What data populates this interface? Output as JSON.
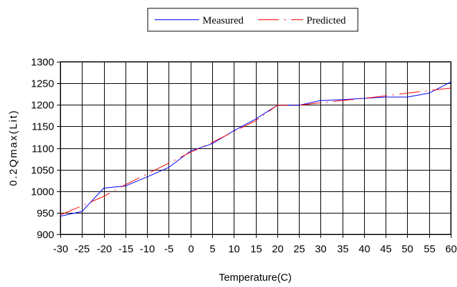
{
  "chart_data": {
    "type": "line",
    "title": "",
    "xlabel": "Temperature(C)",
    "ylabel": "0.2Qmax(Lit)",
    "x": [
      -30,
      -25,
      -20,
      -15,
      -10,
      -5,
      0,
      5,
      10,
      15,
      20,
      25,
      30,
      35,
      40,
      45,
      50,
      55,
      60
    ],
    "xticks": [
      "-30",
      "-25",
      "-20",
      "-15",
      "-10",
      "-5",
      "0",
      "5",
      "10",
      "15",
      "20",
      "25",
      "30",
      "35",
      "40",
      "45",
      "50",
      "55",
      "60"
    ],
    "yticks": [
      "900",
      "950",
      "1000",
      "1050",
      "1100",
      "1150",
      "1200",
      "1250",
      "1300"
    ],
    "xlim": [
      -30,
      60
    ],
    "ylim": [
      900,
      1300
    ],
    "grid": true,
    "legend": "top-center",
    "series": [
      {
        "name": "Measured",
        "color": "#0000ff",
        "style": "solid",
        "values": [
          942,
          953,
          1007,
          1012,
          1033,
          1055,
          1093,
          1110,
          1140,
          1167,
          1199,
          1199,
          1210,
          1212,
          1215,
          1218,
          1218,
          1227,
          1253
        ]
      },
      {
        "name": "Predicted",
        "color": "#ff0000",
        "style": "dashed",
        "values": [
          945,
          966,
          988,
          1015,
          1040,
          1065,
          1090,
          1113,
          1138,
          1163,
          1199,
          1199,
          1205,
          1210,
          1215,
          1221,
          1227,
          1233,
          1239
        ]
      }
    ]
  }
}
